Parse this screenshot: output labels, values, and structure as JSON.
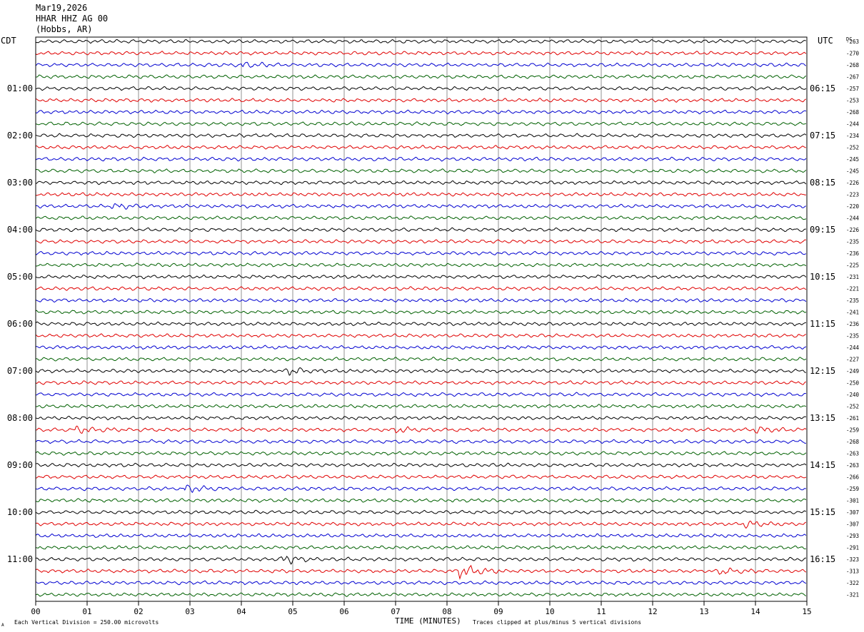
{
  "header": {
    "date": "Mar19,2026",
    "station": "HHAR HHZ AG 00",
    "location": "(Hobbs, AR)"
  },
  "labels": {
    "left_zone": "CDT",
    "right_zone": "UTC",
    "dc": "DC",
    "xlabel": "TIME (MINUTES)",
    "scale_note": "Each Vertical Division =  250.00 microvolts",
    "clip_note": "Traces clipped at plus/minus 5 vertical divisions",
    "corner_mark": "A"
  },
  "chart_data": {
    "type": "line",
    "subtype": "helicorder",
    "xlim": [
      0,
      15
    ],
    "x_ticks": [
      "00",
      "01",
      "02",
      "03",
      "04",
      "05",
      "06",
      "07",
      "08",
      "09",
      "10",
      "11",
      "12",
      "13",
      "14",
      "15"
    ],
    "rows_per_hour": 4,
    "minutes_per_row": 15,
    "trace_colors": [
      "#000000",
      "#e00000",
      "#0000d0",
      "#006000"
    ],
    "left_hour_labels": [
      "01:00",
      "02:00",
      "03:00",
      "04:00",
      "05:00",
      "06:00",
      "07:00",
      "08:00",
      "09:00",
      "10:00",
      "11:00"
    ],
    "right_hour_labels": [
      "06:15",
      "07:15",
      "08:15",
      "09:15",
      "10:15",
      "11:15",
      "12:15",
      "13:15",
      "14:15",
      "15:15",
      "16:15"
    ],
    "first_labeled_row": 4,
    "dc_offsets": [
      "-263",
      "-270",
      "-268",
      "-267",
      "-257",
      "-253",
      "-268",
      "-244",
      "-234",
      "-252",
      "-245",
      "-245",
      "-226",
      "-223",
      "-220",
      "-244",
      "-226",
      "-235",
      "-236",
      "-225",
      "-231",
      "-221",
      "-235",
      "-241",
      "-236",
      "-235",
      "-244",
      "-227",
      "-249",
      "-250",
      "-240",
      "-252",
      "-261",
      "-259",
      "-268",
      "-263",
      "-263",
      "-266",
      "-259",
      "-301",
      "-307",
      "-307",
      "-293",
      "-291",
      "-323",
      "-313",
      "-322",
      "-321"
    ],
    "events": [
      {
        "row": 2,
        "minute": 4.0,
        "amplitude": 1.4
      },
      {
        "row": 14,
        "minute": 1.5,
        "amplitude": 1.3
      },
      {
        "row": 28,
        "minute": 4.9,
        "amplitude": 2.2
      },
      {
        "row": 33,
        "minute": 0.8,
        "amplitude": 2.0
      },
      {
        "row": 33,
        "minute": 7.0,
        "amplitude": 1.6
      },
      {
        "row": 33,
        "minute": 14.0,
        "amplitude": 1.8
      },
      {
        "row": 38,
        "minute": 2.9,
        "amplitude": 2.0
      },
      {
        "row": 41,
        "minute": 13.8,
        "amplitude": 1.8
      },
      {
        "row": 44,
        "minute": 4.8,
        "amplitude": 2.4
      },
      {
        "row": 45,
        "minute": 8.25,
        "amplitude": 5.0
      },
      {
        "row": 45,
        "minute": 13.3,
        "amplitude": 1.8
      }
    ]
  }
}
